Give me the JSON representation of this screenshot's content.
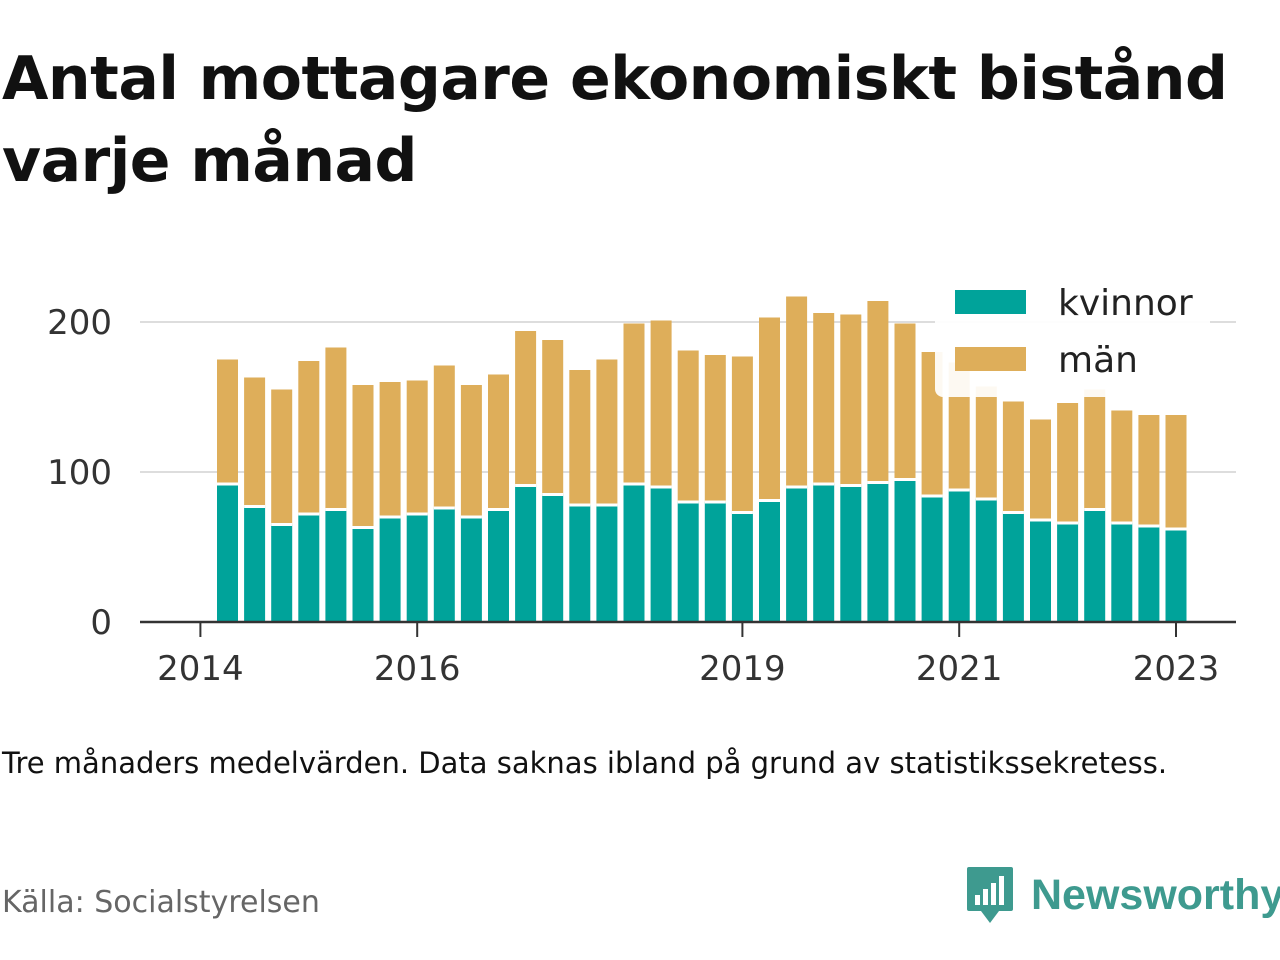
{
  "chart_data": {
    "type": "bar",
    "stacked": true,
    "title": "Antal mottagare ekonomiskt bistånd varje månad",
    "note": "Tre månaders medelvärden. Data saknas ibland på grund av statistikssekretess.",
    "source": "Källa: Socialstyrelsen",
    "ylim": [
      0,
      215
    ],
    "y_ticks": [
      0,
      100,
      200
    ],
    "x_tick_labels": [
      "2014",
      "2016",
      "2019",
      "2021",
      "2023"
    ],
    "grid": true,
    "legend_position": "top-right",
    "colors": {
      "kvinnor": "#00a39a",
      "män": "#deae5a",
      "grid": "#dddddd",
      "axis": "#333333"
    },
    "series": [
      {
        "name": "kvinnor",
        "values": [
          92,
          77,
          65,
          72,
          75,
          63,
          70,
          72,
          76,
          70,
          75,
          91,
          85,
          78,
          78,
          92,
          90,
          80,
          80,
          73,
          81,
          90,
          92,
          91,
          93,
          95,
          84,
          88,
          82,
          73,
          68,
          66,
          75,
          66,
          64,
          62
        ]
      },
      {
        "name": "män",
        "values": [
          83,
          86,
          90,
          102,
          108,
          95,
          90,
          89,
          95,
          88,
          90,
          103,
          103,
          90,
          97,
          107,
          111,
          101,
          98,
          104,
          122,
          127,
          114,
          114,
          121,
          104,
          96,
          85,
          75,
          74,
          67,
          80,
          80,
          75,
          74,
          76
        ]
      }
    ]
  },
  "brand": {
    "name": "Newsworthy",
    "icon": "newsworthy-logo-icon"
  }
}
